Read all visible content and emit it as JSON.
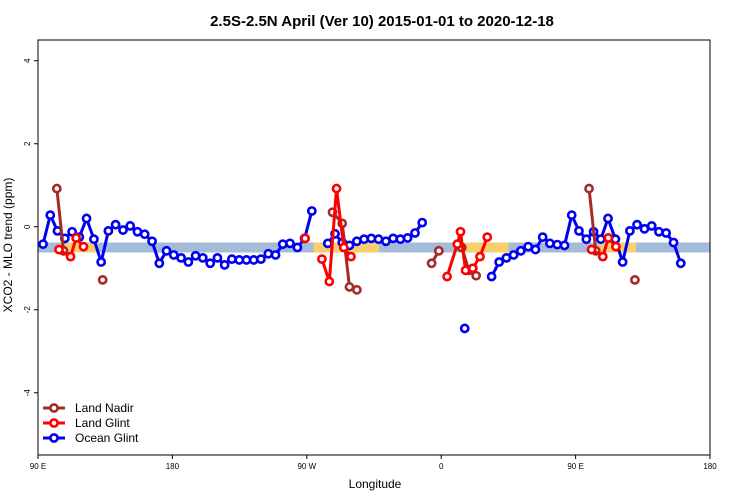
{
  "chart_data": {
    "type": "line",
    "title": "2.5S-2.5N April (Ver 10)   2015-01-01 to 2020-12-18",
    "xlabel": "Longitude",
    "ylabel": "XCO2 - MLO trend (ppm)",
    "xlim": [
      0,
      400
    ],
    "ylim": [
      -5.5,
      4.5
    ],
    "x_ticks": [
      {
        "value": 0,
        "label": "90 E"
      },
      {
        "value": 80,
        "label": "180"
      },
      {
        "value": 160,
        "label": "90 W"
      },
      {
        "value": 240,
        "label": "0"
      },
      {
        "value": 320,
        "label": "90 E"
      },
      {
        "value": 400,
        "label": "180"
      }
    ],
    "y_ticks": [
      -4,
      -2,
      0,
      2,
      4
    ],
    "grid": false,
    "legend_position": "bottom-left",
    "bands": [
      {
        "color": "#a4bcda",
        "y_range": [
          -0.62,
          -0.38
        ],
        "x_range": [
          0,
          400
        ]
      },
      {
        "color": "#f7cf6c",
        "y_range": [
          -0.62,
          -0.38
        ],
        "x_range": [
          13,
          36
        ]
      },
      {
        "color": "#f7cf6c",
        "y_range": [
          -0.62,
          -0.38
        ],
        "x_range": [
          164,
          203
        ]
      },
      {
        "color": "#f7cf6c",
        "y_range": [
          -0.62,
          -0.38
        ],
        "x_range": [
          250,
          280
        ]
      },
      {
        "color": "#f7cf6c",
        "y_range": [
          -0.62,
          -0.38
        ],
        "x_range": [
          333,
          356
        ]
      }
    ],
    "series": [
      {
        "name": "Ocean Glint",
        "color": "#0000ee",
        "segments": [
          [
            [
              3,
              -0.42
            ],
            [
              7.3,
              0.28
            ],
            [
              11.6,
              -0.1
            ],
            [
              16,
              -0.28
            ],
            [
              20.3,
              -0.12
            ],
            [
              24.6,
              -0.25
            ],
            [
              28.9,
              0.2
            ],
            [
              33.3,
              -0.3
            ],
            [
              37.6,
              -0.85
            ],
            [
              41.9,
              -0.1
            ],
            [
              46.2,
              0.05
            ],
            [
              50.6,
              -0.08
            ],
            [
              54.9,
              0.02
            ],
            [
              59.2,
              -0.12
            ],
            [
              63.5,
              -0.18
            ],
            [
              67.9,
              -0.35
            ],
            [
              72.2,
              -0.88
            ],
            [
              76.5,
              -0.58
            ],
            [
              80.8,
              -0.68
            ],
            [
              85.2,
              -0.75
            ],
            [
              89.5,
              -0.85
            ],
            [
              93.8,
              -0.7
            ],
            [
              98.1,
              -0.75
            ],
            [
              102.5,
              -0.88
            ],
            [
              106.8,
              -0.75
            ],
            [
              111.1,
              -0.92
            ],
            [
              115.4,
              -0.78
            ],
            [
              119.8,
              -0.8
            ],
            [
              124.1,
              -0.8
            ],
            [
              128.4,
              -0.8
            ],
            [
              132.7,
              -0.78
            ],
            [
              137.1,
              -0.65
            ],
            [
              141.4,
              -0.68
            ],
            [
              145.7,
              -0.42
            ],
            [
              150,
              -0.4
            ],
            [
              154.4,
              -0.5
            ],
            [
              158.7,
              -0.28
            ],
            [
              163,
              0.38
            ]
          ],
          [
            [
              172.5,
              -0.4
            ],
            [
              176.8,
              -0.17
            ],
            [
              181.1,
              -0.38
            ],
            [
              185.4,
              -0.45
            ],
            [
              189.8,
              -0.35
            ],
            [
              194.1,
              -0.3
            ],
            [
              198.4,
              -0.28
            ],
            [
              202.7,
              -0.3
            ],
            [
              207.1,
              -0.35
            ],
            [
              211.4,
              -0.28
            ],
            [
              215.7,
              -0.3
            ],
            [
              220,
              -0.27
            ],
            [
              224.4,
              -0.15
            ],
            [
              228.7,
              0.1
            ]
          ],
          [
            [
              270,
              -1.2
            ],
            [
              274.5,
              -0.85
            ],
            [
              278.8,
              -0.75
            ],
            [
              283.1,
              -0.68
            ],
            [
              287.4,
              -0.58
            ],
            [
              291.8,
              -0.48
            ],
            [
              296.1,
              -0.55
            ],
            [
              300.4,
              -0.25
            ],
            [
              304.7,
              -0.4
            ],
            [
              309.1,
              -0.43
            ],
            [
              313.4,
              -0.45
            ],
            [
              317.7,
              0.28
            ],
            [
              322,
              -0.1
            ],
            [
              326.4,
              -0.3
            ],
            [
              330.7,
              -0.12
            ],
            [
              335,
              -0.3
            ],
            [
              339.3,
              0.2
            ],
            [
              343.7,
              -0.3
            ],
            [
              348,
              -0.85
            ],
            [
              352.3,
              -0.1
            ],
            [
              356.6,
              0.05
            ],
            [
              361,
              -0.05
            ],
            [
              365.3,
              0.02
            ],
            [
              369.6,
              -0.12
            ],
            [
              373.9,
              -0.15
            ],
            [
              378.3,
              -0.38
            ],
            [
              382.6,
              -0.88
            ]
          ]
        ],
        "points": [
          [
            254,
            -2.45
          ]
        ]
      },
      {
        "name": "Land Nadir",
        "color": "#a52a2a",
        "segments": [
          [
            [
              11.2,
              0.92
            ],
            [
              15.2,
              -0.58
            ]
          ],
          [
            [
              175.3,
              0.35
            ],
            [
              181.1,
              0.08
            ],
            [
              185.4,
              -1.45
            ],
            [
              189.8,
              -1.52
            ]
          ],
          [
            [
              234.3,
              -0.88
            ],
            [
              238.6,
              -0.58
            ]
          ],
          [
            [
              252.2,
              -0.5
            ],
            [
              256.5,
              -1.05
            ],
            [
              260.8,
              -1.18
            ]
          ],
          [
            [
              328,
              0.92
            ],
            [
              332,
              -0.58
            ]
          ]
        ],
        "points": [
          [
            38.5,
            -1.28
          ],
          [
            355.3,
            -1.28
          ]
        ]
      },
      {
        "name": "Land Glint",
        "color": "#ff0000",
        "segments": [
          [
            [
              12.5,
              -0.55
            ],
            [
              19.4,
              -0.72
            ],
            [
              22.7,
              -0.27
            ],
            [
              27.1,
              -0.48
            ]
          ],
          [
            [
              159,
              -0.28
            ]
          ],
          [
            [
              169,
              -0.78
            ],
            [
              173.4,
              -1.32
            ],
            [
              177.7,
              0.92
            ],
            [
              182,
              -0.5
            ],
            [
              186.3,
              -0.72
            ]
          ],
          [
            [
              243.5,
              -1.2
            ],
            [
              249.6,
              -0.42
            ],
            [
              251.5,
              -0.12
            ],
            [
              254.5,
              -1.05
            ],
            [
              258.8,
              -1.0
            ],
            [
              263.1,
              -0.72
            ],
            [
              267.4,
              -0.25
            ]
          ],
          [
            [
              329.5,
              -0.55
            ],
            [
              336.2,
              -0.72
            ],
            [
              339.5,
              -0.27
            ],
            [
              344,
              -0.48
            ]
          ]
        ],
        "points": []
      }
    ]
  }
}
